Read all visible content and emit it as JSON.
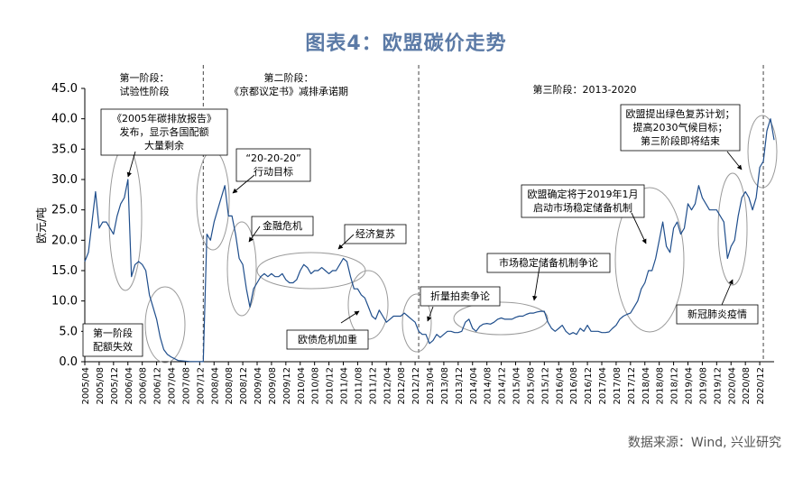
{
  "chart_data": {
    "type": "line",
    "title": "图表4：欧盟碳价走势",
    "ylabel": "欧元/吨",
    "ylim": [
      0,
      45
    ],
    "yticks": [
      "0.0",
      "5.0",
      "10.0",
      "15.0",
      "20.0",
      "25.0",
      "30.0",
      "35.0",
      "40.0",
      "45.0"
    ],
    "xlim": [
      "2005-04",
      "2021-04"
    ],
    "xticks": [
      "2005/04",
      "2005/08",
      "2005/12",
      "2006/04",
      "2006/08",
      "2006/12",
      "2007/04",
      "2007/08",
      "2007/12",
      "2008/04",
      "2008/08",
      "2008/12",
      "2009/04",
      "2009/08",
      "2009/12",
      "2010/04",
      "2010/08",
      "2010/12",
      "2011/04",
      "2011/08",
      "2011/12",
      "2012/04",
      "2012/08",
      "2012/12",
      "2013/04",
      "2013/08",
      "2013/12",
      "2014/04",
      "2014/08",
      "2014/12",
      "2015/04",
      "2015/08",
      "2015/12",
      "2016/04",
      "2016/08",
      "2016/12",
      "2017/04",
      "2017/08",
      "2017/12",
      "2018/04",
      "2018/08",
      "2018/12",
      "2019/04",
      "2019/08",
      "2019/12",
      "2020/04",
      "2020/08",
      "2020/12"
    ],
    "series": [
      {
        "color": "#1f4e8c",
        "points": [
          [
            "2005-04",
            16.5
          ],
          [
            "2005-05",
            18
          ],
          [
            "2005-06",
            23
          ],
          [
            "2005-07",
            28
          ],
          [
            "2005-08",
            22
          ],
          [
            "2005-09",
            23
          ],
          [
            "2005-10",
            23
          ],
          [
            "2005-11",
            22
          ],
          [
            "2005-12",
            21
          ],
          [
            "2006-01",
            24
          ],
          [
            "2006-02",
            26
          ],
          [
            "2006-03",
            27
          ],
          [
            "2006-04",
            30
          ],
          [
            "2006-05",
            14
          ],
          [
            "2006-06",
            16
          ],
          [
            "2006-07",
            16.5
          ],
          [
            "2006-08",
            16
          ],
          [
            "2006-09",
            15
          ],
          [
            "2006-10",
            11
          ],
          [
            "2006-11",
            9
          ],
          [
            "2006-12",
            7
          ],
          [
            "2007-01",
            4
          ],
          [
            "2007-02",
            2
          ],
          [
            "2007-03",
            1.2
          ],
          [
            "2007-04",
            0.8
          ],
          [
            "2007-06",
            0.2
          ],
          [
            "2007-09",
            0.05
          ],
          [
            "2007-12",
            0.02
          ],
          [
            "2008-01",
            0.02
          ],
          [
            "2008-02",
            21
          ],
          [
            "2008-03",
            20
          ],
          [
            "2008-04",
            23
          ],
          [
            "2008-05",
            25
          ],
          [
            "2008-06",
            27
          ],
          [
            "2008-07",
            29
          ],
          [
            "2008-08",
            24
          ],
          [
            "2008-09",
            24
          ],
          [
            "2008-10",
            21
          ],
          [
            "2008-11",
            17
          ],
          [
            "2008-12",
            16
          ],
          [
            "2009-01",
            12
          ],
          [
            "2009-02",
            9
          ],
          [
            "2009-03",
            12
          ],
          [
            "2009-04",
            13
          ],
          [
            "2009-05",
            14
          ],
          [
            "2009-06",
            14.5
          ],
          [
            "2009-07",
            14
          ],
          [
            "2009-08",
            14.5
          ],
          [
            "2009-09",
            14
          ],
          [
            "2009-10",
            14
          ],
          [
            "2009-11",
            14.5
          ],
          [
            "2009-12",
            13.5
          ],
          [
            "2010-01",
            13
          ],
          [
            "2010-02",
            13
          ],
          [
            "2010-03",
            13.5
          ],
          [
            "2010-04",
            15
          ],
          [
            "2010-05",
            16
          ],
          [
            "2010-06",
            15.5
          ],
          [
            "2010-07",
            14.5
          ],
          [
            "2010-08",
            15
          ],
          [
            "2010-09",
            15
          ],
          [
            "2010-10",
            15.5
          ],
          [
            "2010-11",
            15
          ],
          [
            "2010-12",
            14.5
          ],
          [
            "2011-01",
            15
          ],
          [
            "2011-02",
            15
          ],
          [
            "2011-03",
            16
          ],
          [
            "2011-04",
            17
          ],
          [
            "2011-05",
            16.5
          ],
          [
            "2011-06",
            14
          ],
          [
            "2011-07",
            12
          ],
          [
            "2011-08",
            12
          ],
          [
            "2011-09",
            11
          ],
          [
            "2011-10",
            10.5
          ],
          [
            "2011-11",
            9
          ],
          [
            "2011-12",
            7.5
          ],
          [
            "2012-01",
            7
          ],
          [
            "2012-02",
            8.5
          ],
          [
            "2012-03",
            7.5
          ],
          [
            "2012-04",
            6.5
          ],
          [
            "2012-05",
            7
          ],
          [
            "2012-06",
            7.5
          ],
          [
            "2012-07",
            7.5
          ],
          [
            "2012-08",
            7.5
          ],
          [
            "2012-09",
            8
          ],
          [
            "2012-10",
            7.5
          ],
          [
            "2012-11",
            7
          ],
          [
            "2012-12",
            6.5
          ],
          [
            "2013-01",
            5
          ],
          [
            "2013-02",
            4.5
          ],
          [
            "2013-03",
            4.5
          ],
          [
            "2013-04",
            3
          ],
          [
            "2013-05",
            3.5
          ],
          [
            "2013-06",
            4.5
          ],
          [
            "2013-07",
            4
          ],
          [
            "2013-08",
            4.5
          ],
          [
            "2013-09",
            5
          ],
          [
            "2013-10",
            5
          ],
          [
            "2013-11",
            4.8
          ],
          [
            "2013-12",
            4.8
          ],
          [
            "2014-01",
            5
          ],
          [
            "2014-02",
            6.5
          ],
          [
            "2014-03",
            7
          ],
          [
            "2014-04",
            5.5
          ],
          [
            "2014-05",
            5
          ],
          [
            "2014-06",
            5.8
          ],
          [
            "2014-07",
            6.2
          ],
          [
            "2014-08",
            6.3
          ],
          [
            "2014-09",
            6.2
          ],
          [
            "2014-10",
            6.5
          ],
          [
            "2014-11",
            7
          ],
          [
            "2014-12",
            7.2
          ],
          [
            "2015-01",
            7
          ],
          [
            "2015-02",
            7
          ],
          [
            "2015-03",
            7
          ],
          [
            "2015-04",
            7.3
          ],
          [
            "2015-05",
            7.5
          ],
          [
            "2015-06",
            7.5
          ],
          [
            "2015-07",
            7.8
          ],
          [
            "2015-08",
            8
          ],
          [
            "2015-09",
            8
          ],
          [
            "2015-10",
            8.2
          ],
          [
            "2015-11",
            8.3
          ],
          [
            "2015-12",
            8.3
          ],
          [
            "2016-01",
            6.5
          ],
          [
            "2016-02",
            5.5
          ],
          [
            "2016-03",
            5
          ],
          [
            "2016-04",
            5.5
          ],
          [
            "2016-05",
            6
          ],
          [
            "2016-06",
            5
          ],
          [
            "2016-07",
            4.5
          ],
          [
            "2016-08",
            4.8
          ],
          [
            "2016-09",
            4.5
          ],
          [
            "2016-10",
            5.5
          ],
          [
            "2016-11",
            5
          ],
          [
            "2016-12",
            6
          ],
          [
            "2017-01",
            5
          ],
          [
            "2017-02",
            5
          ],
          [
            "2017-03",
            5
          ],
          [
            "2017-04",
            4.8
          ],
          [
            "2017-05",
            4.8
          ],
          [
            "2017-06",
            4.9
          ],
          [
            "2017-07",
            5.5
          ],
          [
            "2017-08",
            6
          ],
          [
            "2017-09",
            7
          ],
          [
            "2017-10",
            7.5
          ],
          [
            "2017-11",
            7.8
          ],
          [
            "2017-12",
            8
          ],
          [
            "2018-01",
            9
          ],
          [
            "2018-02",
            10
          ],
          [
            "2018-03",
            12
          ],
          [
            "2018-04",
            13
          ],
          [
            "2018-05",
            15
          ],
          [
            "2018-06",
            15
          ],
          [
            "2018-07",
            17
          ],
          [
            "2018-08",
            20
          ],
          [
            "2018-09",
            23
          ],
          [
            "2018-10",
            19
          ],
          [
            "2018-11",
            18
          ],
          [
            "2018-12",
            22
          ],
          [
            "2019-01",
            23
          ],
          [
            "2019-02",
            21
          ],
          [
            "2019-03",
            22
          ],
          [
            "2019-04",
            26
          ],
          [
            "2019-05",
            25
          ],
          [
            "2019-06",
            26
          ],
          [
            "2019-07",
            29
          ],
          [
            "2019-08",
            27
          ],
          [
            "2019-09",
            26
          ],
          [
            "2019-10",
            25
          ],
          [
            "2019-11",
            25
          ],
          [
            "2019-12",
            25
          ],
          [
            "2020-01",
            24
          ],
          [
            "2020-02",
            23
          ],
          [
            "2020-03",
            17
          ],
          [
            "2020-04",
            19
          ],
          [
            "2020-05",
            20
          ],
          [
            "2020-06",
            24
          ],
          [
            "2020-07",
            27
          ],
          [
            "2020-08",
            28
          ],
          [
            "2020-09",
            27
          ],
          [
            "2020-10",
            25
          ],
          [
            "2020-11",
            27
          ],
          [
            "2020-12",
            32
          ],
          [
            "2021-01",
            33
          ],
          [
            "2021-02",
            38
          ],
          [
            "2021-03",
            40
          ],
          [
            "2021-04",
            36.5
          ]
        ]
      }
    ],
    "dividers": [
      {
        "x": "2008-01",
        "style": "dashed"
      },
      {
        "x": "2013-01",
        "style": "dashed"
      },
      {
        "x": "2021-01",
        "style": "dashed"
      }
    ],
    "phases": [
      {
        "lines": [
          "第一阶段：",
          "试验性阶段"
        ]
      },
      {
        "lines": [
          "第二阶段：",
          "《京都议定书》减排承诺期"
        ]
      },
      {
        "lines": [
          "第三阶段：2013-2020"
        ]
      }
    ],
    "annotations": [
      {
        "lines": [
          "《2005年碳排放报告》",
          "发布，显示各国配额",
          "大量剩余"
        ]
      },
      {
        "lines": [
          "第一阶段",
          "配额失效"
        ]
      },
      {
        "lines": [
          "“20-20-20”",
          "行动目标"
        ]
      },
      {
        "lines": [
          "金融危机"
        ]
      },
      {
        "lines": [
          "经济复苏"
        ]
      },
      {
        "lines": [
          "欧债危机加重"
        ]
      },
      {
        "lines": [
          "折量拍卖争论"
        ]
      },
      {
        "lines": [
          "市场稳定储备机制争论"
        ]
      },
      {
        "lines": [
          "欧盟确定将于2019年1月",
          "启动市场稳定储备机制"
        ]
      },
      {
        "lines": [
          "欧盟提出绿色复苏计划；",
          "提高2030气候目标；",
          "第三阶段即将结束"
        ]
      },
      {
        "lines": [
          "新冠肺炎疫情"
        ]
      }
    ]
  },
  "source_note": "数据来源：Wind, 兴业研究"
}
